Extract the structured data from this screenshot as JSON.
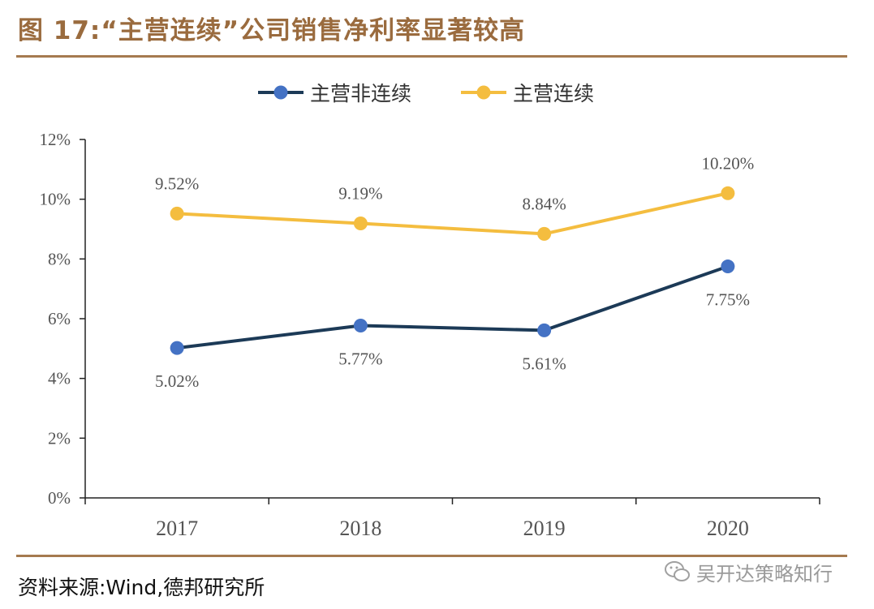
{
  "title": "图 17:“主营连续”公司销售净利率显著较高",
  "source": "资料来源:Wind,德邦研究所",
  "watermark": "吴开达策略知行",
  "colors": {
    "accent": "#a57a4f",
    "series_nonconsecutive": "#1c3a57",
    "series_consecutive": "#f4bd3f",
    "marker_nonconsecutive": "#4472c4"
  },
  "chart_data": {
    "type": "line",
    "title": "",
    "xlabel": "",
    "ylabel": "",
    "categories": [
      "2017",
      "2018",
      "2019",
      "2020"
    ],
    "ylim": [
      0,
      12
    ],
    "yticks": [
      "0%",
      "2%",
      "4%",
      "6%",
      "8%",
      "10%",
      "12%"
    ],
    "ytick_values": [
      0,
      2,
      4,
      6,
      8,
      10,
      12
    ],
    "legend_position": "top-center",
    "series": [
      {
        "name": "主营非连续",
        "values": [
          5.02,
          5.77,
          5.61,
          7.75
        ],
        "labels": [
          "5.02%",
          "5.77%",
          "5.61%",
          "7.75%"
        ]
      },
      {
        "name": "主营连续",
        "values": [
          9.52,
          9.19,
          8.84,
          10.2
        ],
        "labels": [
          "9.52%",
          "9.19%",
          "8.84%",
          "10.20%"
        ]
      }
    ]
  }
}
